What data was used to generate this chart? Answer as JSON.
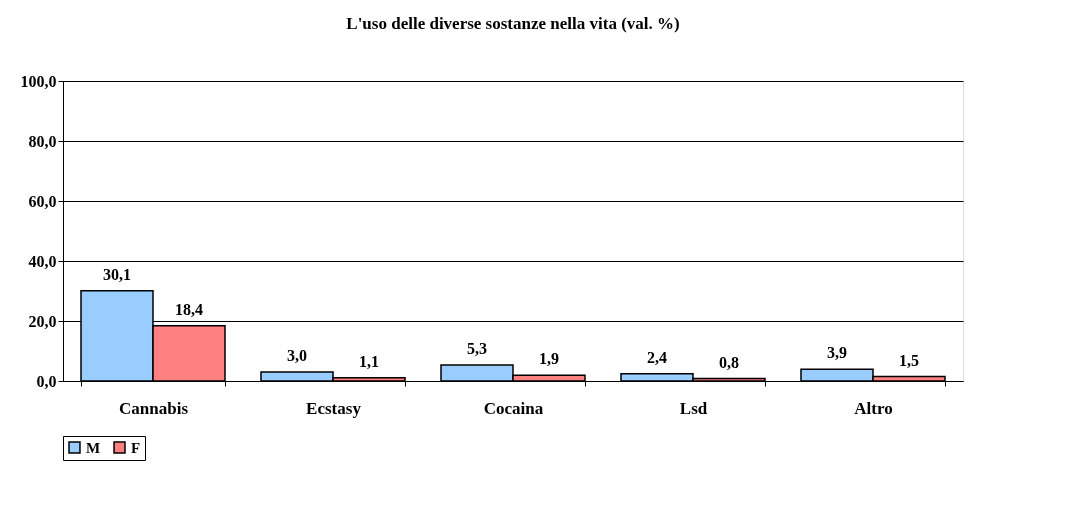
{
  "chart_data": {
    "type": "bar",
    "title": "L'uso delle diverse sostanze nella vita (val. %)",
    "categories": [
      "Cannabis",
      "Ecstasy",
      "Cocaina",
      "Lsd",
      "Altro"
    ],
    "series": [
      {
        "name": "M",
        "color": "#99ccff",
        "values": [
          30.1,
          3.0,
          5.3,
          2.4,
          3.9
        ],
        "value_labels": [
          "30,1",
          "3,0",
          "5,3",
          "2,4",
          "3,9"
        ]
      },
      {
        "name": "F",
        "color": "#ff8080",
        "values": [
          18.4,
          1.1,
          1.9,
          0.8,
          1.5
        ],
        "value_labels": [
          "18,4",
          "1,1",
          "1,9",
          "0,8",
          "1,5"
        ]
      }
    ],
    "ylim": [
      0,
      100
    ],
    "yticks": [
      {
        "value": 0,
        "label": "0,0"
      },
      {
        "value": 20,
        "label": "20,0"
      },
      {
        "value": 40,
        "label": "40,0"
      },
      {
        "value": 60,
        "label": "60,0"
      },
      {
        "value": 80,
        "label": "80,0"
      },
      {
        "value": 100,
        "label": "100,0"
      }
    ],
    "grid": "y",
    "legend": "bottom"
  }
}
